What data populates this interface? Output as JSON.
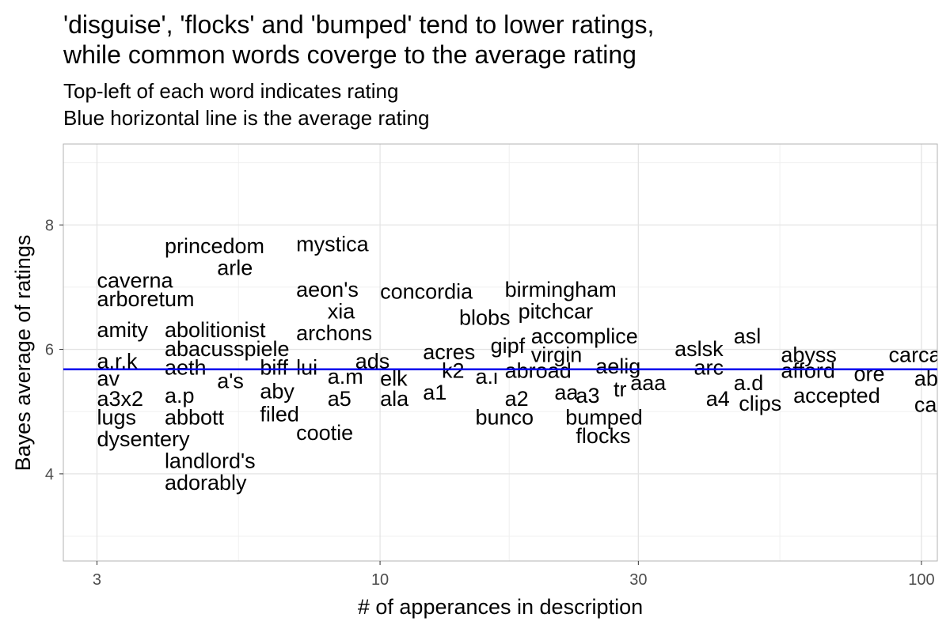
{
  "title": "'disguise', 'flocks' and 'bumped' tend to lower ratings,\nwhile common words coverge to the average rating",
  "subtitle": "Top-left of each word indicates rating\nBlue horizontal line is the average rating",
  "chart_data": {
    "type": "scatter",
    "title": "'disguise', 'flocks' and 'bumped' tend to lower ratings, while common words coverge to the average rating",
    "subtitle": "Top-left of each word indicates rating. Blue horizontal line is the average rating",
    "xlabel": "# of apperances in description",
    "ylabel": "Bayes average of ratings",
    "xscale": "log10",
    "xlim": [
      2.6,
      107
    ],
    "ylim": [
      2.6,
      9.3
    ],
    "xticks": [
      3,
      10,
      30,
      100
    ],
    "yticks": [
      4,
      6,
      8
    ],
    "grid": true,
    "reference_line": {
      "y": 5.68,
      "color": "#0000ee",
      "label": "average rating"
    },
    "points": [
      {
        "label": "princedom",
        "x": 4,
        "y": 7.85
      },
      {
        "label": "mystica",
        "x": 7,
        "y": 7.88
      },
      {
        "label": "arle",
        "x": 5,
        "y": 7.5
      },
      {
        "label": "caverna",
        "x": 3,
        "y": 7.3
      },
      {
        "label": "arboretum",
        "x": 3,
        "y": 7.0
      },
      {
        "label": "aeon's",
        "x": 7,
        "y": 7.15
      },
      {
        "label": "concordia",
        "x": 10,
        "y": 7.12
      },
      {
        "label": "birmingham",
        "x": 17,
        "y": 7.15
      },
      {
        "label": "xia",
        "x": 8,
        "y": 6.8
      },
      {
        "label": "pitchcar",
        "x": 18,
        "y": 6.8
      },
      {
        "label": "blobs",
        "x": 14,
        "y": 6.7
      },
      {
        "label": "amity",
        "x": 3,
        "y": 6.5
      },
      {
        "label": "abolitionist",
        "x": 4,
        "y": 6.5
      },
      {
        "label": "archons",
        "x": 7,
        "y": 6.45
      },
      {
        "label": "accomplice",
        "x": 19,
        "y": 6.4
      },
      {
        "label": "asl",
        "x": 45,
        "y": 6.4
      },
      {
        "label": "gipf",
        "x": 16,
        "y": 6.25
      },
      {
        "label": "abacusspiele",
        "x": 4,
        "y": 6.2
      },
      {
        "label": "acres",
        "x": 12,
        "y": 6.15
      },
      {
        "label": "aslsk",
        "x": 35,
        "y": 6.2
      },
      {
        "label": "virgin",
        "x": 19,
        "y": 6.1
      },
      {
        "label": "abyss",
        "x": 55,
        "y": 6.1
      },
      {
        "label": "carcassonne",
        "x": 87,
        "y": 6.1
      },
      {
        "label": "a.r.k",
        "x": 3,
        "y": 6.0
      },
      {
        "label": "ads",
        "x": 9,
        "y": 6.0
      },
      {
        "label": "aeth",
        "x": 4,
        "y": 5.9
      },
      {
        "label": "biff",
        "x": 6,
        "y": 5.9
      },
      {
        "label": "lui",
        "x": 7,
        "y": 5.9
      },
      {
        "label": "k2",
        "x": 13,
        "y": 5.85
      },
      {
        "label": "aelig",
        "x": 25,
        "y": 5.92
      },
      {
        "label": "arc",
        "x": 38,
        "y": 5.9
      },
      {
        "label": "abroad",
        "x": 17,
        "y": 5.85
      },
      {
        "label": "afford",
        "x": 55,
        "y": 5.85
      },
      {
        "label": "ore",
        "x": 75,
        "y": 5.8
      },
      {
        "label": "av",
        "x": 3,
        "y": 5.72
      },
      {
        "label": "a's",
        "x": 5,
        "y": 5.68
      },
      {
        "label": "a.m",
        "x": 8,
        "y": 5.75
      },
      {
        "label": "elk",
        "x": 10,
        "y": 5.72
      },
      {
        "label": "a.i",
        "x": 15,
        "y": 5.75
      },
      {
        "label": "a.d",
        "x": 45,
        "y": 5.65
      },
      {
        "label": "abar",
        "x": 97,
        "y": 5.72
      },
      {
        "label": "aaa",
        "x": 29,
        "y": 5.65
      },
      {
        "label": "tr",
        "x": 27,
        "y": 5.55
      },
      {
        "label": "a1",
        "x": 12,
        "y": 5.5
      },
      {
        "label": "aa",
        "x": 21,
        "y": 5.5
      },
      {
        "label": "a3",
        "x": 23,
        "y": 5.45
      },
      {
        "label": "aby",
        "x": 6,
        "y": 5.52
      },
      {
        "label": "a.p",
        "x": 4,
        "y": 5.45
      },
      {
        "label": "a3x2",
        "x": 3,
        "y": 5.4
      },
      {
        "label": "a5",
        "x": 8,
        "y": 5.4
      },
      {
        "label": "ala",
        "x": 10,
        "y": 5.4
      },
      {
        "label": "a2",
        "x": 17,
        "y": 5.4
      },
      {
        "label": "a4",
        "x": 40,
        "y": 5.4
      },
      {
        "label": "accepted",
        "x": 58,
        "y": 5.45
      },
      {
        "label": "clips",
        "x": 46,
        "y": 5.32
      },
      {
        "label": "can",
        "x": 97,
        "y": 5.3
      },
      {
        "label": "filed",
        "x": 6,
        "y": 5.15
      },
      {
        "label": "lugs",
        "x": 3,
        "y": 5.1
      },
      {
        "label": "abbott",
        "x": 4,
        "y": 5.1
      },
      {
        "label": "bunco",
        "x": 15,
        "y": 5.1
      },
      {
        "label": "bumped",
        "x": 22,
        "y": 5.1
      },
      {
        "label": "cootie",
        "x": 7,
        "y": 4.85
      },
      {
        "label": "flocks",
        "x": 23,
        "y": 4.8
      },
      {
        "label": "dysentery",
        "x": 3,
        "y": 4.75
      },
      {
        "label": "landlord's",
        "x": 4,
        "y": 4.4
      },
      {
        "label": "adorably",
        "x": 4,
        "y": 4.05
      }
    ]
  }
}
